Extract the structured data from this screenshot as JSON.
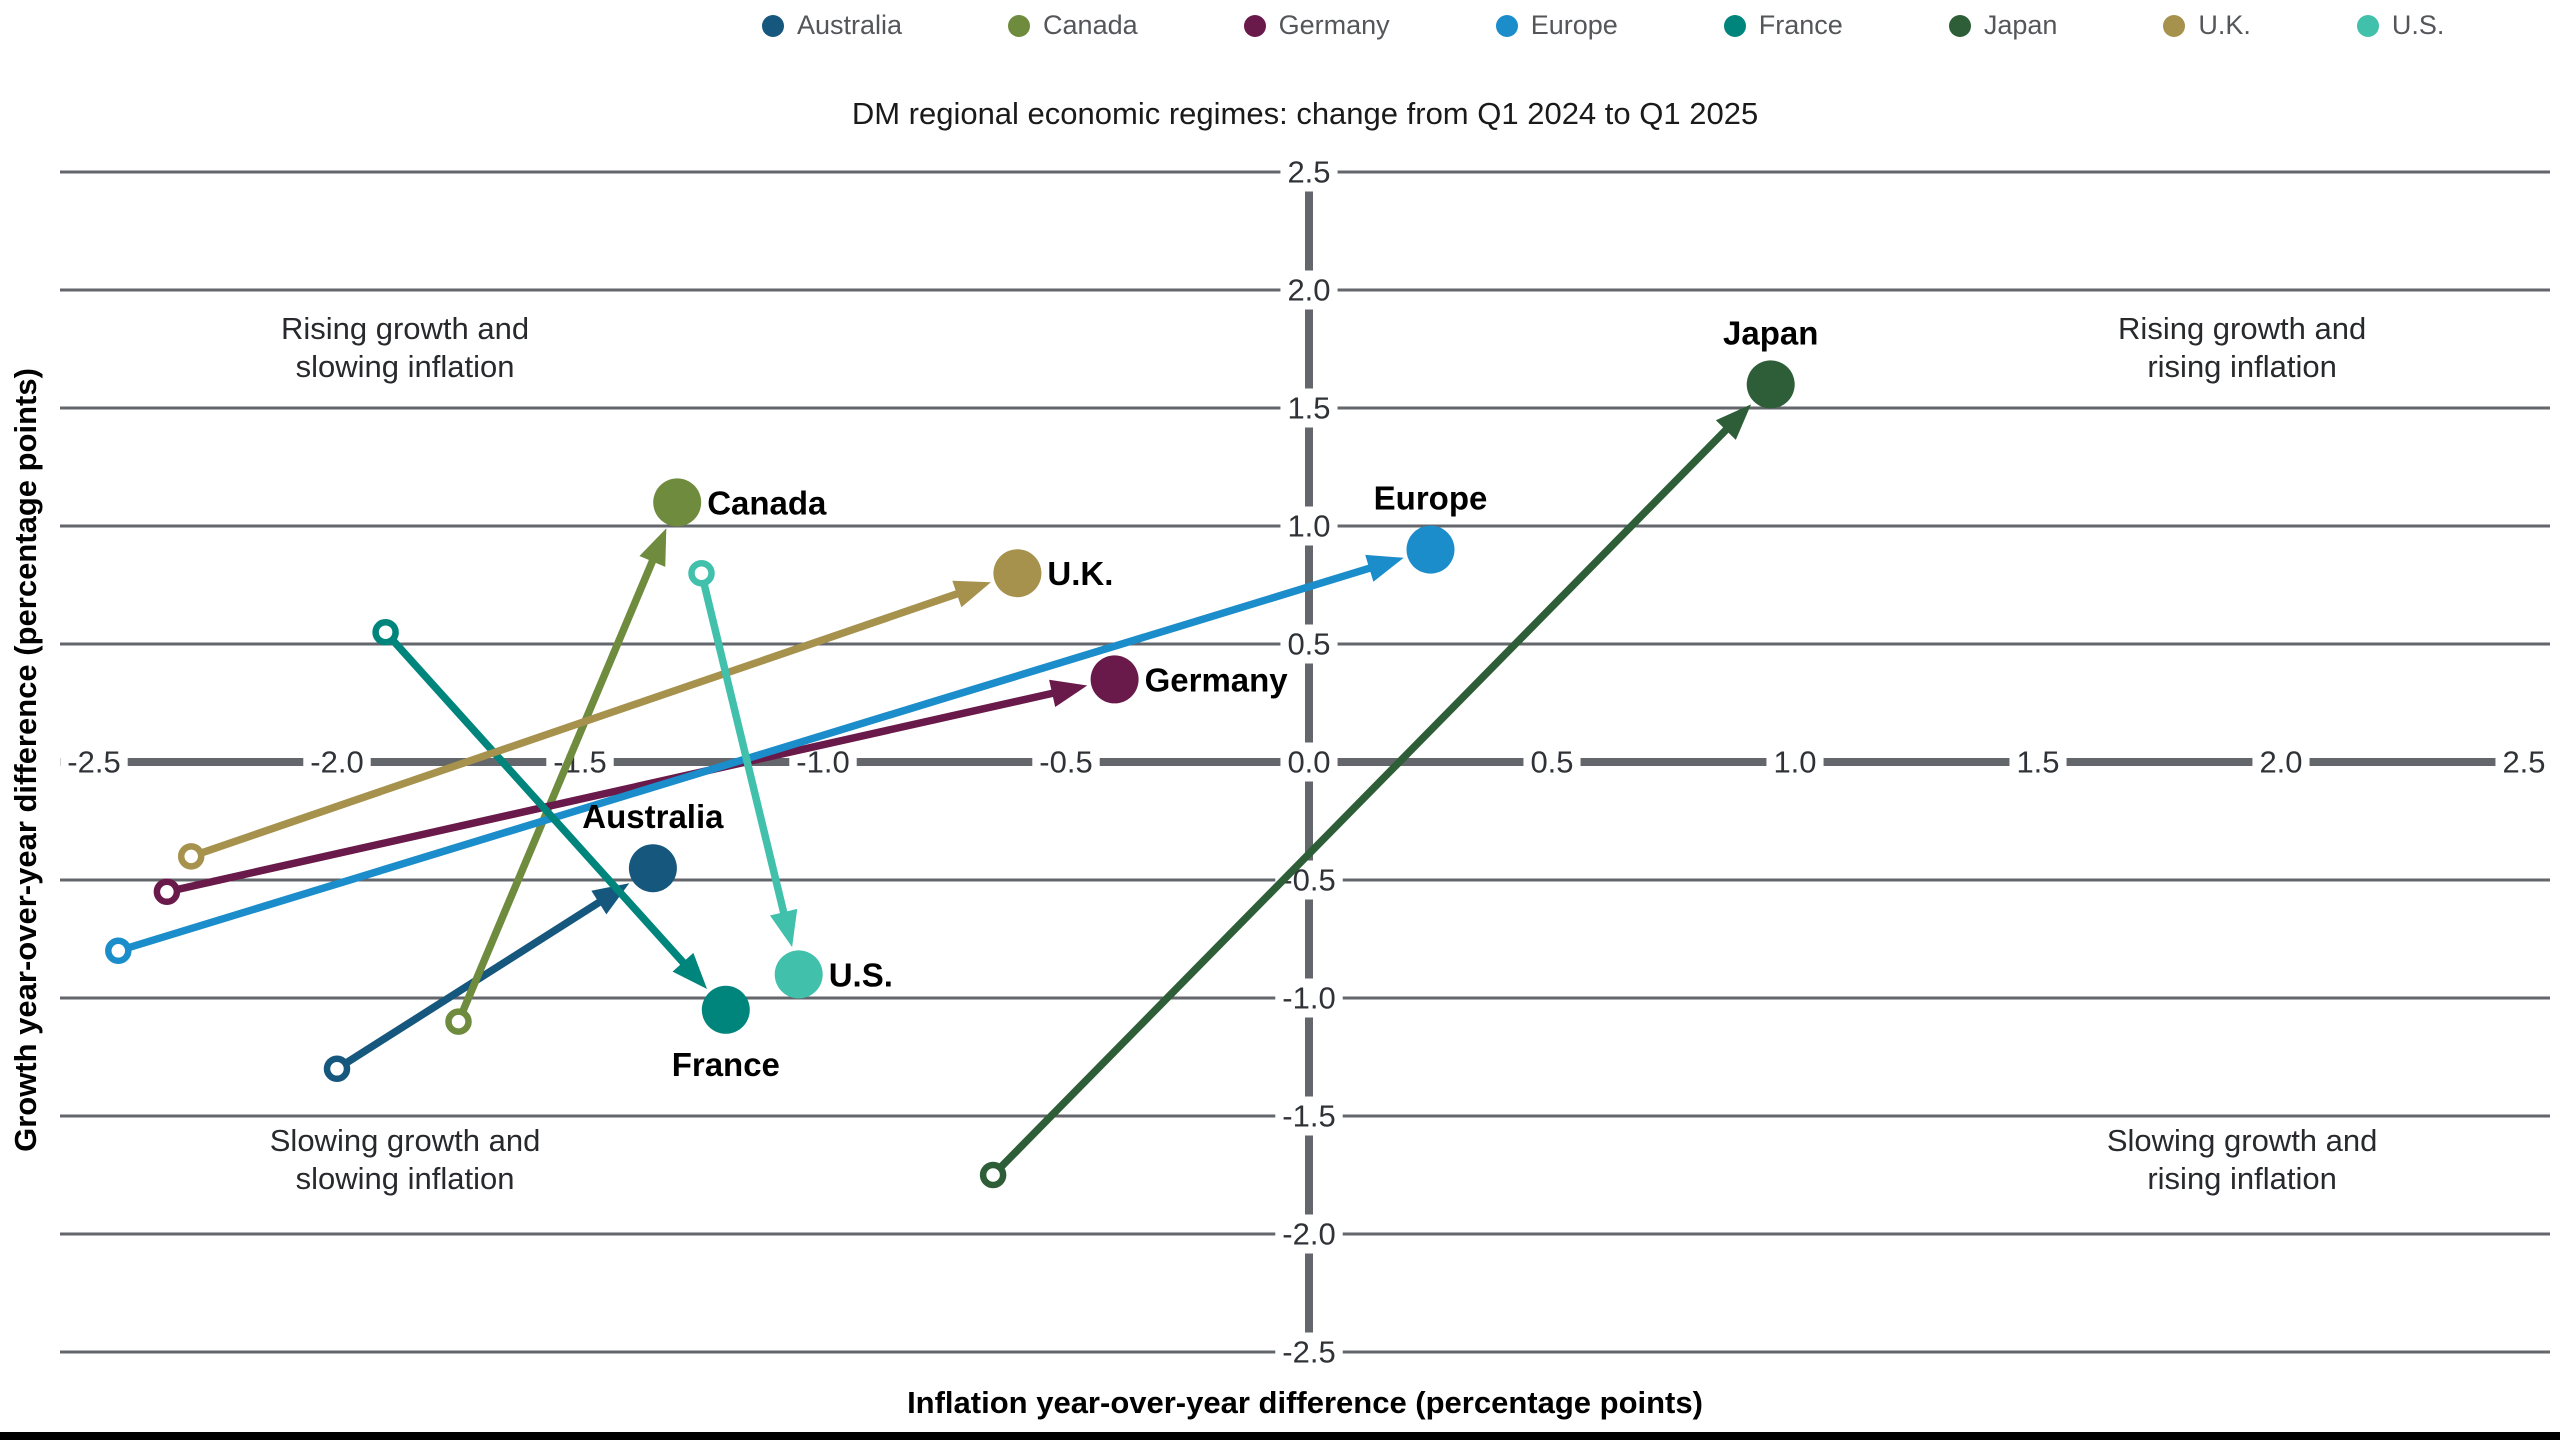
{
  "chart_data": {
    "type": "scatter",
    "subtype": "arrow-change",
    "title": "DM regional economic regimes: change from Q1 2024 to Q1 2025",
    "xlabel": "Inflation year-over-year difference (percentage points)",
    "ylabel": "Growth year-over-year difference (percentage points)",
    "xlim": [
      -2.5,
      2.5
    ],
    "ylim": [
      -2.5,
      2.5
    ],
    "xticks": [
      -2.5,
      -2.0,
      -1.5,
      -1.0,
      -0.5,
      0.0,
      0.5,
      1.0,
      1.5,
      2.0,
      2.5
    ],
    "yticks": [
      -2.5,
      -2.0,
      -1.5,
      -1.0,
      -0.5,
      0.0,
      0.5,
      1.0,
      1.5,
      2.0,
      2.5
    ],
    "grid": "horizontal-only",
    "legend_position": "top",
    "marker_semantics": {
      "start": "open circle (Q1 2024)",
      "end": "filled circle with arrow (Q1 2025)"
    },
    "series": [
      {
        "name": "Australia",
        "color": "#15577d",
        "start": {
          "x": -2.0,
          "y": -1.3
        },
        "end": {
          "x": -1.35,
          "y": -0.45
        },
        "label_side": "above"
      },
      {
        "name": "Canada",
        "color": "#6f8c3e",
        "start": {
          "x": -1.75,
          "y": -1.1
        },
        "end": {
          "x": -1.3,
          "y": 1.1
        },
        "label_side": "right"
      },
      {
        "name": "Germany",
        "color": "#6a1a4a",
        "start": {
          "x": -2.35,
          "y": -0.55
        },
        "end": {
          "x": -0.4,
          "y": 0.35
        },
        "label_side": "right"
      },
      {
        "name": "Europe",
        "color": "#1b8dcb",
        "start": {
          "x": -2.45,
          "y": -0.8
        },
        "end": {
          "x": 0.25,
          "y": 0.9
        },
        "label_side": "above"
      },
      {
        "name": "France",
        "color": "#00857c",
        "start": {
          "x": -1.9,
          "y": 0.55
        },
        "end": {
          "x": -1.2,
          "y": -1.05
        },
        "label_side": "below"
      },
      {
        "name": "Japan",
        "color": "#2e5e37",
        "start": {
          "x": -0.65,
          "y": -1.75
        },
        "end": {
          "x": 0.95,
          "y": 1.6
        },
        "label_side": "above"
      },
      {
        "name": "U.K.",
        "color": "#a6914d",
        "start": {
          "x": -2.3,
          "y": -0.4
        },
        "end": {
          "x": -0.6,
          "y": 0.8
        },
        "label_side": "right"
      },
      {
        "name": "U.S.",
        "color": "#41c0ac",
        "start": {
          "x": -1.25,
          "y": 0.8
        },
        "end": {
          "x": -1.05,
          "y": -0.9
        },
        "label_side": "right"
      }
    ],
    "quadrant_labels": [
      {
        "position": "top-left",
        "lines": [
          "Rising growth and",
          "slowing inflation"
        ]
      },
      {
        "position": "top-right",
        "lines": [
          "Rising growth and",
          "rising inflation"
        ]
      },
      {
        "position": "bottom-left",
        "lines": [
          "Slowing growth and",
          "slowing inflation"
        ]
      },
      {
        "position": "bottom-right",
        "lines": [
          "Slowing growth and",
          "rising inflation"
        ]
      }
    ],
    "style": {
      "grid_color": "#63666b",
      "tick_color": "#2f3236",
      "legend_text_color": "#54565a",
      "quadrant_text_color": "#27292c",
      "point_label_color": "#000000",
      "bottom_bar_color": "#000000"
    }
  }
}
